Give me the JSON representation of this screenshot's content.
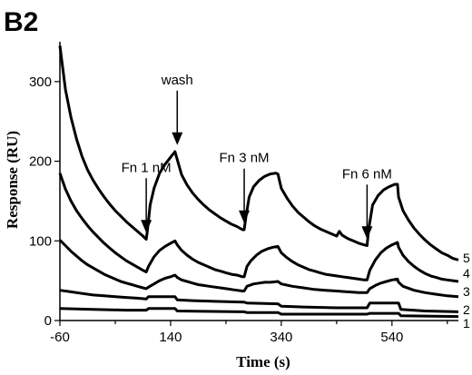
{
  "panel_label": "B2",
  "chart_data": {
    "type": "line",
    "title": "",
    "xlabel": "Time (s)",
    "ylabel": "Response (RU)",
    "xlim": [
      -60,
      660
    ],
    "ylim": [
      0,
      350
    ],
    "xticks": [
      -60,
      140,
      340,
      540
    ],
    "yticks": [
      0,
      100,
      200,
      300
    ],
    "grid": false,
    "legend": "none",
    "line_color": "#000000",
    "series": [
      {
        "name": "5",
        "points": [
          [
            -60,
            345
          ],
          [
            -50,
            290
          ],
          [
            -40,
            255
          ],
          [
            -30,
            228
          ],
          [
            -20,
            206
          ],
          [
            -10,
            189
          ],
          [
            0,
            176
          ],
          [
            10,
            165
          ],
          [
            20,
            155
          ],
          [
            30,
            146
          ],
          [
            40,
            138
          ],
          [
            50,
            131
          ],
          [
            60,
            124
          ],
          [
            70,
            118
          ],
          [
            80,
            112
          ],
          [
            90,
            106
          ],
          [
            96,
            102
          ],
          [
            98,
            112
          ],
          [
            103,
            145
          ],
          [
            110,
            166
          ],
          [
            120,
            185
          ],
          [
            130,
            196
          ],
          [
            140,
            205
          ],
          [
            148,
            212
          ],
          [
            152,
            202
          ],
          [
            160,
            183
          ],
          [
            170,
            170
          ],
          [
            180,
            160
          ],
          [
            190,
            152
          ],
          [
            200,
            145
          ],
          [
            210,
            139
          ],
          [
            220,
            134
          ],
          [
            230,
            129
          ],
          [
            240,
            125
          ],
          [
            250,
            121
          ],
          [
            260,
            118
          ],
          [
            270,
            114
          ],
          [
            273,
            114
          ],
          [
            276,
            130
          ],
          [
            282,
            155
          ],
          [
            290,
            168
          ],
          [
            300,
            176
          ],
          [
            310,
            181
          ],
          [
            320,
            184
          ],
          [
            330,
            185
          ],
          [
            334,
            184
          ],
          [
            340,
            166
          ],
          [
            350,
            154
          ],
          [
            360,
            144
          ],
          [
            370,
            136
          ],
          [
            380,
            130
          ],
          [
            390,
            124
          ],
          [
            400,
            119
          ],
          [
            410,
            115
          ],
          [
            420,
            112
          ],
          [
            430,
            109
          ],
          [
            440,
            106
          ],
          [
            445,
            112
          ],
          [
            450,
            107
          ],
          [
            460,
            103
          ],
          [
            470,
            100
          ],
          [
            480,
            97
          ],
          [
            490,
            95
          ],
          [
            495,
            94
          ],
          [
            498,
            115
          ],
          [
            505,
            145
          ],
          [
            515,
            157
          ],
          [
            525,
            164
          ],
          [
            535,
            168
          ],
          [
            545,
            171
          ],
          [
            550,
            171
          ],
          [
            552,
            155
          ],
          [
            560,
            138
          ],
          [
            570,
            126
          ],
          [
            580,
            116
          ],
          [
            590,
            108
          ],
          [
            600,
            101
          ],
          [
            610,
            95
          ],
          [
            620,
            90
          ],
          [
            630,
            85
          ],
          [
            640,
            82
          ],
          [
            650,
            78
          ],
          [
            660,
            76
          ]
        ]
      },
      {
        "name": "4",
        "points": [
          [
            -60,
            185
          ],
          [
            -50,
            165
          ],
          [
            -40,
            150
          ],
          [
            -30,
            138
          ],
          [
            -20,
            128
          ],
          [
            -10,
            119
          ],
          [
            0,
            111
          ],
          [
            10,
            104
          ],
          [
            20,
            97
          ],
          [
            30,
            91
          ],
          [
            40,
            85
          ],
          [
            50,
            80
          ],
          [
            60,
            75
          ],
          [
            70,
            71
          ],
          [
            80,
            67
          ],
          [
            90,
            63
          ],
          [
            96,
            61
          ],
          [
            100,
            68
          ],
          [
            110,
            80
          ],
          [
            120,
            88
          ],
          [
            130,
            93
          ],
          [
            140,
            97
          ],
          [
            148,
            100
          ],
          [
            152,
            95
          ],
          [
            160,
            88
          ],
          [
            170,
            82
          ],
          [
            180,
            77
          ],
          [
            190,
            73
          ],
          [
            200,
            70
          ],
          [
            210,
            67
          ],
          [
            220,
            64
          ],
          [
            230,
            62
          ],
          [
            240,
            60
          ],
          [
            250,
            58
          ],
          [
            260,
            57
          ],
          [
            270,
            55
          ],
          [
            273,
            55
          ],
          [
            278,
            68
          ],
          [
            285,
            75
          ],
          [
            295,
            82
          ],
          [
            305,
            87
          ],
          [
            315,
            90
          ],
          [
            325,
            92
          ],
          [
            334,
            93
          ],
          [
            340,
            85
          ],
          [
            350,
            79
          ],
          [
            360,
            74
          ],
          [
            370,
            70
          ],
          [
            380,
            67
          ],
          [
            390,
            64
          ],
          [
            400,
            62
          ],
          [
            410,
            60
          ],
          [
            420,
            58
          ],
          [
            430,
            57
          ],
          [
            440,
            56
          ],
          [
            450,
            55
          ],
          [
            460,
            54
          ],
          [
            470,
            53
          ],
          [
            480,
            52
          ],
          [
            490,
            51
          ],
          [
            495,
            51
          ],
          [
            500,
            63
          ],
          [
            510,
            76
          ],
          [
            520,
            85
          ],
          [
            530,
            91
          ],
          [
            540,
            95
          ],
          [
            550,
            98
          ],
          [
            552,
            92
          ],
          [
            560,
            82
          ],
          [
            570,
            74
          ],
          [
            580,
            68
          ],
          [
            590,
            63
          ],
          [
            600,
            59
          ],
          [
            610,
            56
          ],
          [
            620,
            54
          ],
          [
            630,
            52
          ],
          [
            640,
            51
          ],
          [
            650,
            50
          ],
          [
            660,
            49
          ]
        ]
      },
      {
        "name": "3",
        "points": [
          [
            -60,
            101
          ],
          [
            -50,
            94
          ],
          [
            -40,
            87
          ],
          [
            -30,
            81
          ],
          [
            -20,
            75
          ],
          [
            -10,
            70
          ],
          [
            0,
            66
          ],
          [
            10,
            62
          ],
          [
            20,
            58
          ],
          [
            30,
            55
          ],
          [
            40,
            52
          ],
          [
            50,
            49
          ],
          [
            60,
            47
          ],
          [
            70,
            45
          ],
          [
            80,
            43
          ],
          [
            90,
            41
          ],
          [
            96,
            40
          ],
          [
            100,
            42
          ],
          [
            110,
            46
          ],
          [
            120,
            50
          ],
          [
            130,
            53
          ],
          [
            140,
            55
          ],
          [
            148,
            57
          ],
          [
            152,
            54
          ],
          [
            160,
            51
          ],
          [
            170,
            49
          ],
          [
            180,
            47
          ],
          [
            190,
            45
          ],
          [
            200,
            44
          ],
          [
            210,
            43
          ],
          [
            220,
            42
          ],
          [
            230,
            41
          ],
          [
            240,
            40
          ],
          [
            250,
            39
          ],
          [
            260,
            38
          ],
          [
            270,
            37
          ],
          [
            273,
            37
          ],
          [
            278,
            43
          ],
          [
            290,
            46
          ],
          [
            300,
            47
          ],
          [
            310,
            48
          ],
          [
            320,
            48
          ],
          [
            334,
            49
          ],
          [
            340,
            46
          ],
          [
            360,
            43
          ],
          [
            380,
            41
          ],
          [
            400,
            39
          ],
          [
            420,
            38
          ],
          [
            440,
            37
          ],
          [
            460,
            36
          ],
          [
            480,
            35
          ],
          [
            495,
            35
          ],
          [
            500,
            40
          ],
          [
            510,
            44
          ],
          [
            520,
            47
          ],
          [
            530,
            49
          ],
          [
            540,
            51
          ],
          [
            550,
            52
          ],
          [
            552,
            48
          ],
          [
            560,
            43
          ],
          [
            580,
            38
          ],
          [
            600,
            35
          ],
          [
            620,
            33
          ],
          [
            640,
            31
          ],
          [
            660,
            30
          ]
        ]
      },
      {
        "name": "2",
        "points": [
          [
            -60,
            38
          ],
          [
            -40,
            36
          ],
          [
            -20,
            34
          ],
          [
            0,
            32
          ],
          [
            20,
            31
          ],
          [
            40,
            30
          ],
          [
            60,
            29
          ],
          [
            80,
            28
          ],
          [
            96,
            27
          ],
          [
            100,
            30
          ],
          [
            148,
            30
          ],
          [
            152,
            26
          ],
          [
            180,
            25
          ],
          [
            220,
            24
          ],
          [
            273,
            23
          ],
          [
            278,
            22
          ],
          [
            334,
            21
          ],
          [
            340,
            18
          ],
          [
            380,
            17
          ],
          [
            440,
            16
          ],
          [
            495,
            16
          ],
          [
            500,
            22
          ],
          [
            552,
            22
          ],
          [
            556,
            14
          ],
          [
            600,
            12
          ],
          [
            660,
            11
          ]
        ]
      },
      {
        "name": "1",
        "points": [
          [
            -60,
            15
          ],
          [
            0,
            14
          ],
          [
            60,
            13
          ],
          [
            96,
            13
          ],
          [
            100,
            15
          ],
          [
            148,
            15
          ],
          [
            152,
            12
          ],
          [
            273,
            11
          ],
          [
            278,
            10
          ],
          [
            334,
            10
          ],
          [
            340,
            8
          ],
          [
            495,
            8
          ],
          [
            500,
            9
          ],
          [
            552,
            9
          ],
          [
            556,
            6
          ],
          [
            660,
            5
          ]
        ]
      }
    ],
    "annotations": [
      {
        "text": "Fn 1 nM",
        "x": 96,
        "y": 108
      },
      {
        "text": "wash",
        "x": 152,
        "y": 218
      },
      {
        "text": "Fn 3 nM",
        "x": 273,
        "y": 120
      },
      {
        "text": "Fn 6 nM",
        "x": 495,
        "y": 100
      }
    ]
  }
}
